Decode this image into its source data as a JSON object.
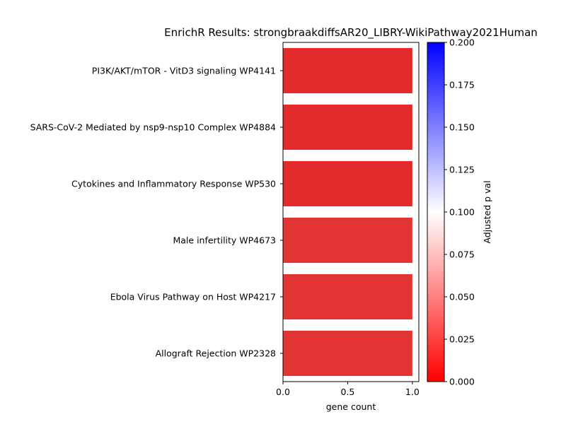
{
  "chart_data": {
    "type": "bar",
    "orientation": "horizontal",
    "title": "EnrichR Results: strongbraakdiffsAR20_LIBRY-WikiPathway2021Human",
    "xlabel": "gene count",
    "ylabel": "",
    "xlim": [
      0,
      1.05
    ],
    "xticks": [
      "0.0",
      "0.5",
      "1.0"
    ],
    "categories": [
      "PI3K/AKT/mTOR - VitD3 signaling WP4141",
      "SARS-CoV-2 Mediated by nsp9-nsp10 Complex WP4884",
      "Cytokines and Inflammatory Response WP530",
      "Male infertility WP4673",
      "Ebola Virus Pathway on Host WP4217",
      "Allograft Rejection WP2328"
    ],
    "values": [
      1,
      1,
      1,
      1,
      1,
      1
    ],
    "adjusted_p_values": [
      0.018,
      0.018,
      0.018,
      0.02,
      0.02,
      0.02
    ],
    "bar_colors": [
      "#e32b2b",
      "#e32b2b",
      "#e32b2b",
      "#e33434",
      "#e33434",
      "#e33434"
    ],
    "colorbar": {
      "label": "Adjusted p val",
      "range": [
        0,
        0.2
      ],
      "ticks": [
        "0.000",
        "0.025",
        "0.050",
        "0.075",
        "0.100",
        "0.125",
        "0.150",
        "0.175",
        "0.200"
      ],
      "colors": [
        "#ff0000",
        "#ffffff",
        "#0000ff"
      ]
    },
    "grid": false,
    "legend": "colorbar-right"
  }
}
